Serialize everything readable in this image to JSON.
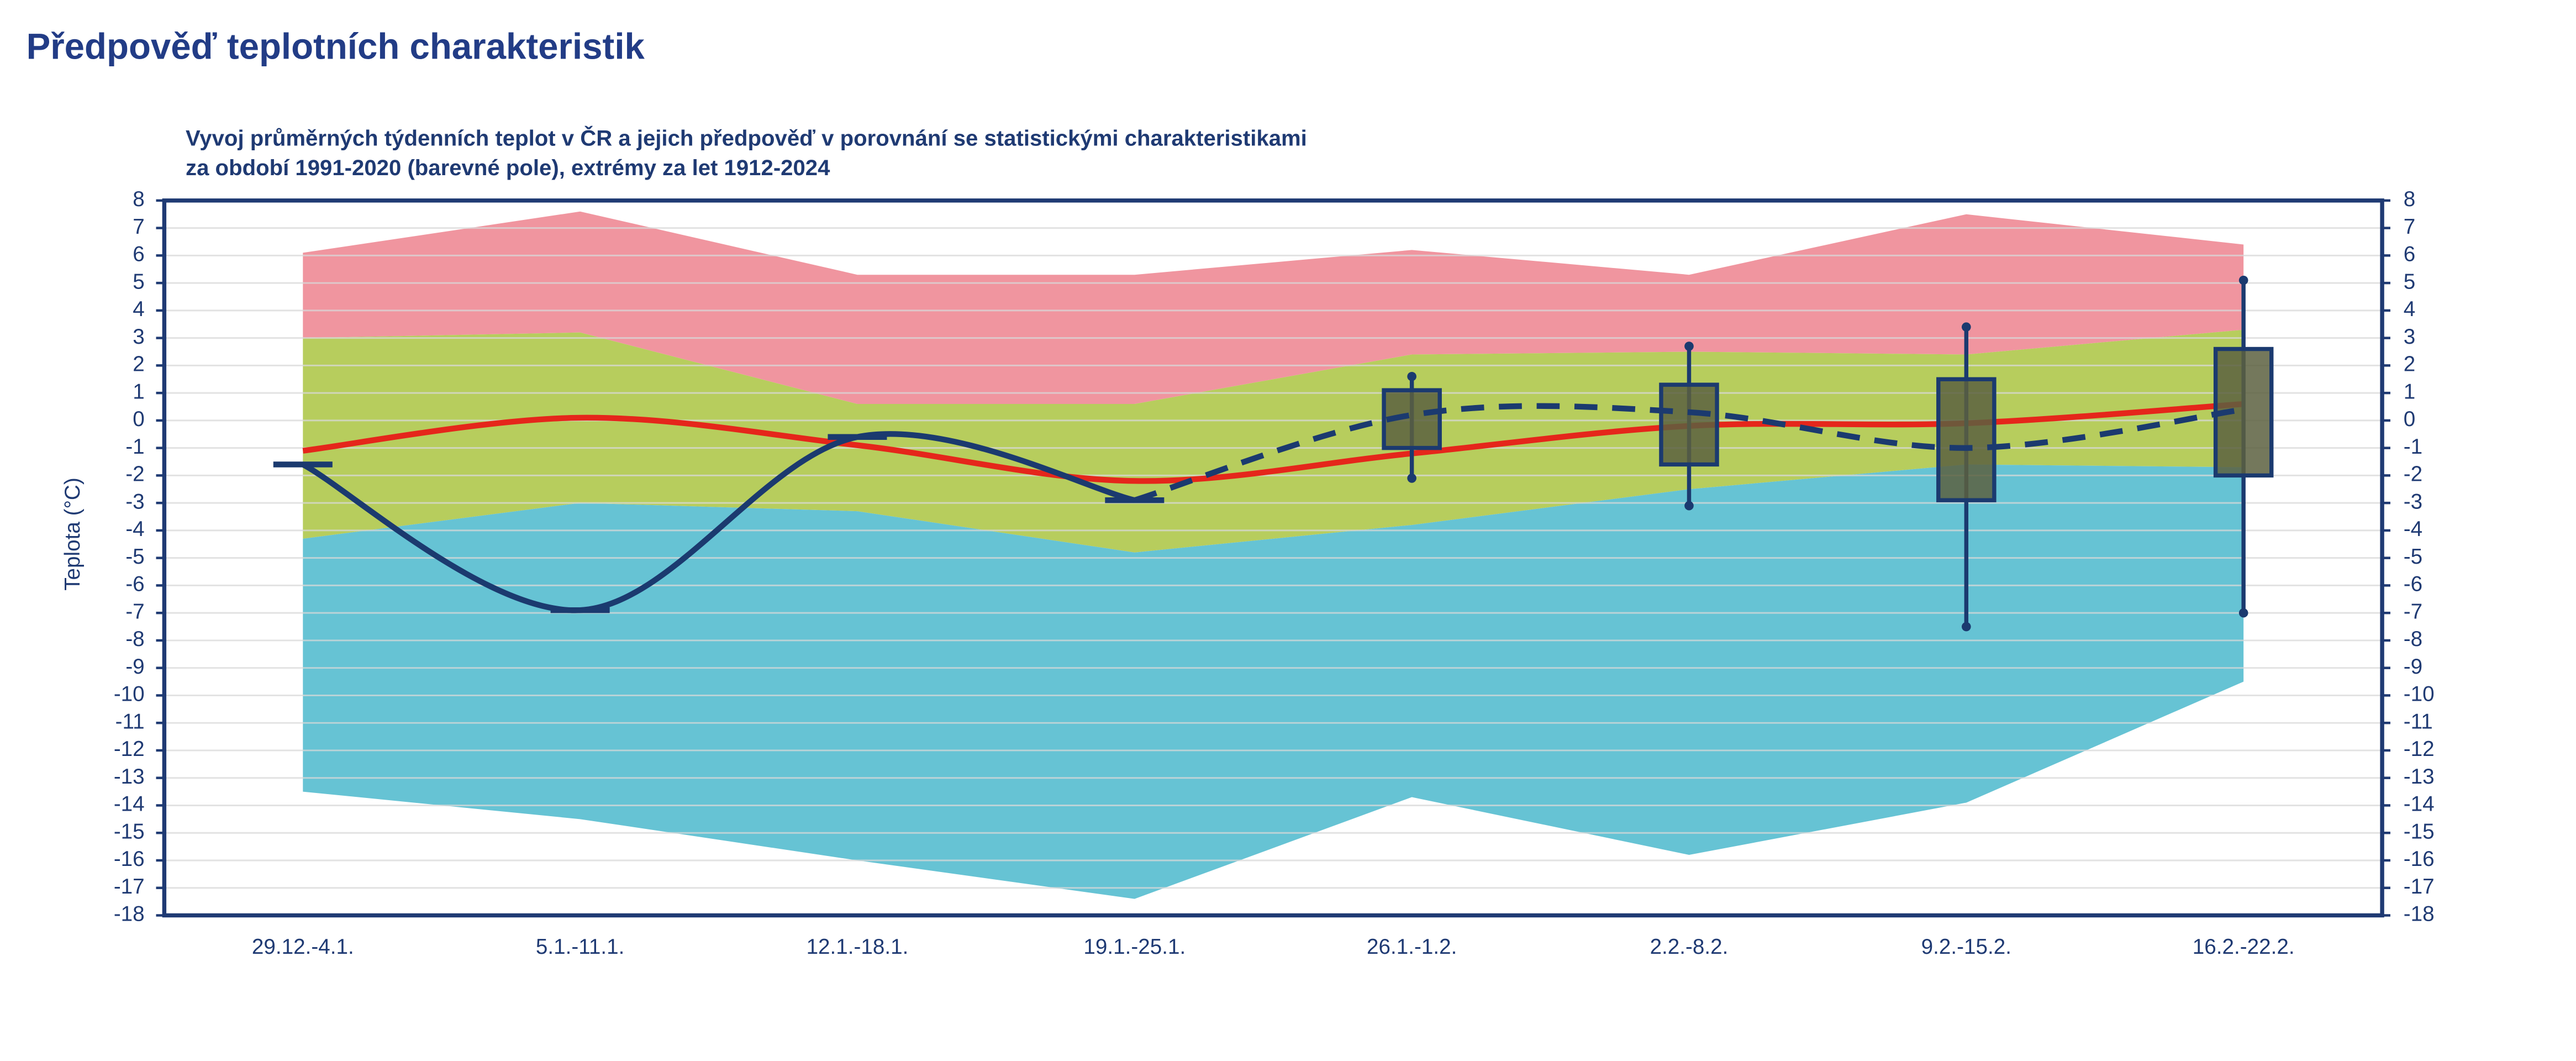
{
  "header": {
    "title": "Předpověď teplotních charakteristik"
  },
  "chart_data": {
    "type": "band",
    "title": [
      "Vyvoj průměrných týdenních teplot v ČR a jejich předpověď v porovnání se statistickými charakteristikami",
      "za období 1991-2020 (barevné pole), extrémy za let 1912-2024"
    ],
    "y_label": "Teplota (°C)",
    "categories": [
      "29.12.-4.1.",
      "5.1.-11.1.",
      "12.1.-18.1.",
      "19.1.-25.1.",
      "26.1.-1.2.",
      "2.2.-8.2.",
      "9.2.-15.2.",
      "16.2.-22.2."
    ],
    "ylim": [
      -18,
      8
    ],
    "yticks": [
      -18,
      -17,
      -16,
      -15,
      -14,
      -13,
      -12,
      -11,
      -10,
      -9,
      -8,
      -7,
      -6,
      -5,
      -4,
      -3,
      -2,
      -1,
      0,
      1,
      2,
      3,
      4,
      5,
      6,
      7,
      8
    ],
    "grid": true,
    "boundaries": [
      [
        6.1,
        7.6,
        5.3,
        5.3,
        6.2,
        5.3,
        7.5,
        6.4
      ],
      [
        3.0,
        3.2,
        0.6,
        0.6,
        2.4,
        2.5,
        2.4,
        3.3
      ],
      [
        -4.3,
        -3.0,
        -3.3,
        -4.8,
        -3.8,
        -2.5,
        -1.6,
        -1.7
      ],
      [
        -13.5,
        -14.5,
        -16.0,
        -17.4,
        -13.7,
        -15.8,
        -13.9,
        -9.5
      ]
    ],
    "band_colors": [
      "#f0959f",
      "#b7cd5d",
      "#66c3d4"
    ],
    "mean": {
      "color": "#e5261b",
      "values": [
        -1.1,
        0.1,
        -0.9,
        -2.2,
        -1.2,
        -0.2,
        -0.1,
        0.6
      ]
    },
    "observed": {
      "color": "#1b3a6f",
      "values": [
        -1.6,
        -6.9,
        -0.6,
        -2.9,
        null,
        null,
        null,
        null
      ]
    },
    "forecast": {
      "color": "#1b3a6f",
      "values": [
        null,
        null,
        null,
        -2.9,
        0.2,
        0.3,
        -1.0,
        0.4
      ]
    },
    "boxes": {
      "color": "#5c6040",
      "edge": "#1b3a6f",
      "whisker_low": [
        null,
        null,
        null,
        null,
        -2.1,
        -3.1,
        -7.5,
        -7.0
      ],
      "box_low": [
        null,
        null,
        null,
        null,
        -1.0,
        -1.6,
        -2.9,
        -2.0
      ],
      "box_high": [
        null,
        null,
        null,
        null,
        1.1,
        1.3,
        1.5,
        2.6
      ],
      "whisker_high": [
        null,
        null,
        null,
        null,
        1.6,
        2.7,
        3.4,
        5.1
      ]
    }
  }
}
